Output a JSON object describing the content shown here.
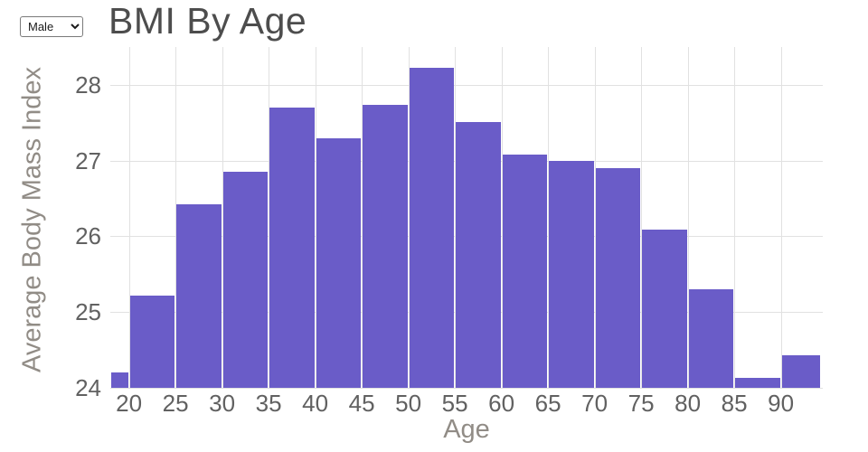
{
  "title": "BMI By Age",
  "controls": {
    "gender_select": {
      "value": "Male",
      "options": [
        "Male"
      ]
    }
  },
  "chart_data": {
    "type": "bar",
    "title": "BMI By Age",
    "xlabel": "Age",
    "ylabel": "Average Body Mass Index",
    "x_domain": [
      18,
      94.5
    ],
    "y_domain": [
      24,
      28.5
    ],
    "x_ticks": [
      20,
      25,
      30,
      35,
      40,
      45,
      50,
      55,
      60,
      65,
      70,
      75,
      80,
      85,
      90
    ],
    "y_ticks": [
      24,
      25,
      26,
      27,
      28
    ],
    "grid": true,
    "legend": "none",
    "bar_color": "#6a5cc8",
    "grid_color": "#e1e1e1",
    "bars": [
      {
        "x0": 18,
        "x1": 20,
        "value": 24.2
      },
      {
        "x0": 20,
        "x1": 25,
        "value": 25.22
      },
      {
        "x0": 25,
        "x1": 30,
        "value": 26.42
      },
      {
        "x0": 30,
        "x1": 35,
        "value": 26.85
      },
      {
        "x0": 35,
        "x1": 40,
        "value": 27.7
      },
      {
        "x0": 40,
        "x1": 45,
        "value": 27.3
      },
      {
        "x0": 45,
        "x1": 50,
        "value": 27.74
      },
      {
        "x0": 50,
        "x1": 55,
        "value": 28.22
      },
      {
        "x0": 55,
        "x1": 60,
        "value": 27.51
      },
      {
        "x0": 60,
        "x1": 65,
        "value": 27.08
      },
      {
        "x0": 65,
        "x1": 70,
        "value": 27.0
      },
      {
        "x0": 70,
        "x1": 75,
        "value": 26.9
      },
      {
        "x0": 75,
        "x1": 80,
        "value": 26.09
      },
      {
        "x0": 80,
        "x1": 85,
        "value": 25.3
      },
      {
        "x0": 85,
        "x1": 90,
        "value": 24.13
      },
      {
        "x0": 90,
        "x1": 94.3,
        "value": 24.43
      }
    ]
  },
  "colors": {
    "title_text": "#4d4d4d",
    "tick_text": "#616161",
    "axis_title_text": "#918c86",
    "background": "#ffffff"
  }
}
